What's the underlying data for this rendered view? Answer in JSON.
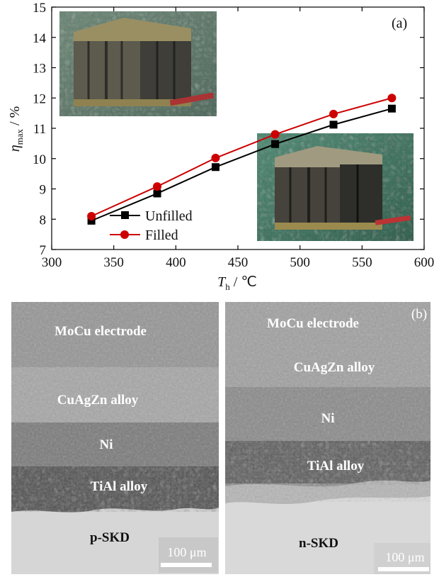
{
  "chart_data": {
    "type": "line",
    "panel_label": "(a)",
    "xlabel_main": "T",
    "xlabel_sub": "h",
    "xlabel_unit": " / ℃",
    "ylabel_main": "η",
    "ylabel_sub": "max",
    "ylabel_unit": " / %",
    "xlim": [
      300,
      600
    ],
    "ylim": [
      7,
      15
    ],
    "x_ticks": [
      300,
      350,
      400,
      450,
      500,
      550,
      600
    ],
    "y_ticks": [
      7,
      8,
      9,
      10,
      11,
      12,
      13,
      14,
      15
    ],
    "x": [
      332,
      385,
      432,
      480,
      527,
      574
    ],
    "series": [
      {
        "name": "Unfilled",
        "marker": "square",
        "color": "#000000",
        "values": [
          7.95,
          8.85,
          9.72,
          10.48,
          11.12,
          11.65
        ]
      },
      {
        "name": "Filled",
        "marker": "circle",
        "color": "#cc0000",
        "values": [
          8.1,
          9.08,
          10.02,
          10.8,
          11.47,
          12.0
        ]
      }
    ],
    "legend_position": "bottom-left"
  },
  "micrographs": {
    "panel_label": "(b)",
    "left": {
      "layers": [
        "MoCu electrode",
        "CuAgZn alloy",
        "Ni",
        "TiAl alloy",
        "p-SKD"
      ],
      "scale_bar": "100 μm"
    },
    "right": {
      "layers": [
        "MoCu electrode",
        "CuAgZn alloy",
        "Ni",
        "TiAl alloy",
        "n-SKD"
      ],
      "scale_bar": "100 μm"
    }
  }
}
